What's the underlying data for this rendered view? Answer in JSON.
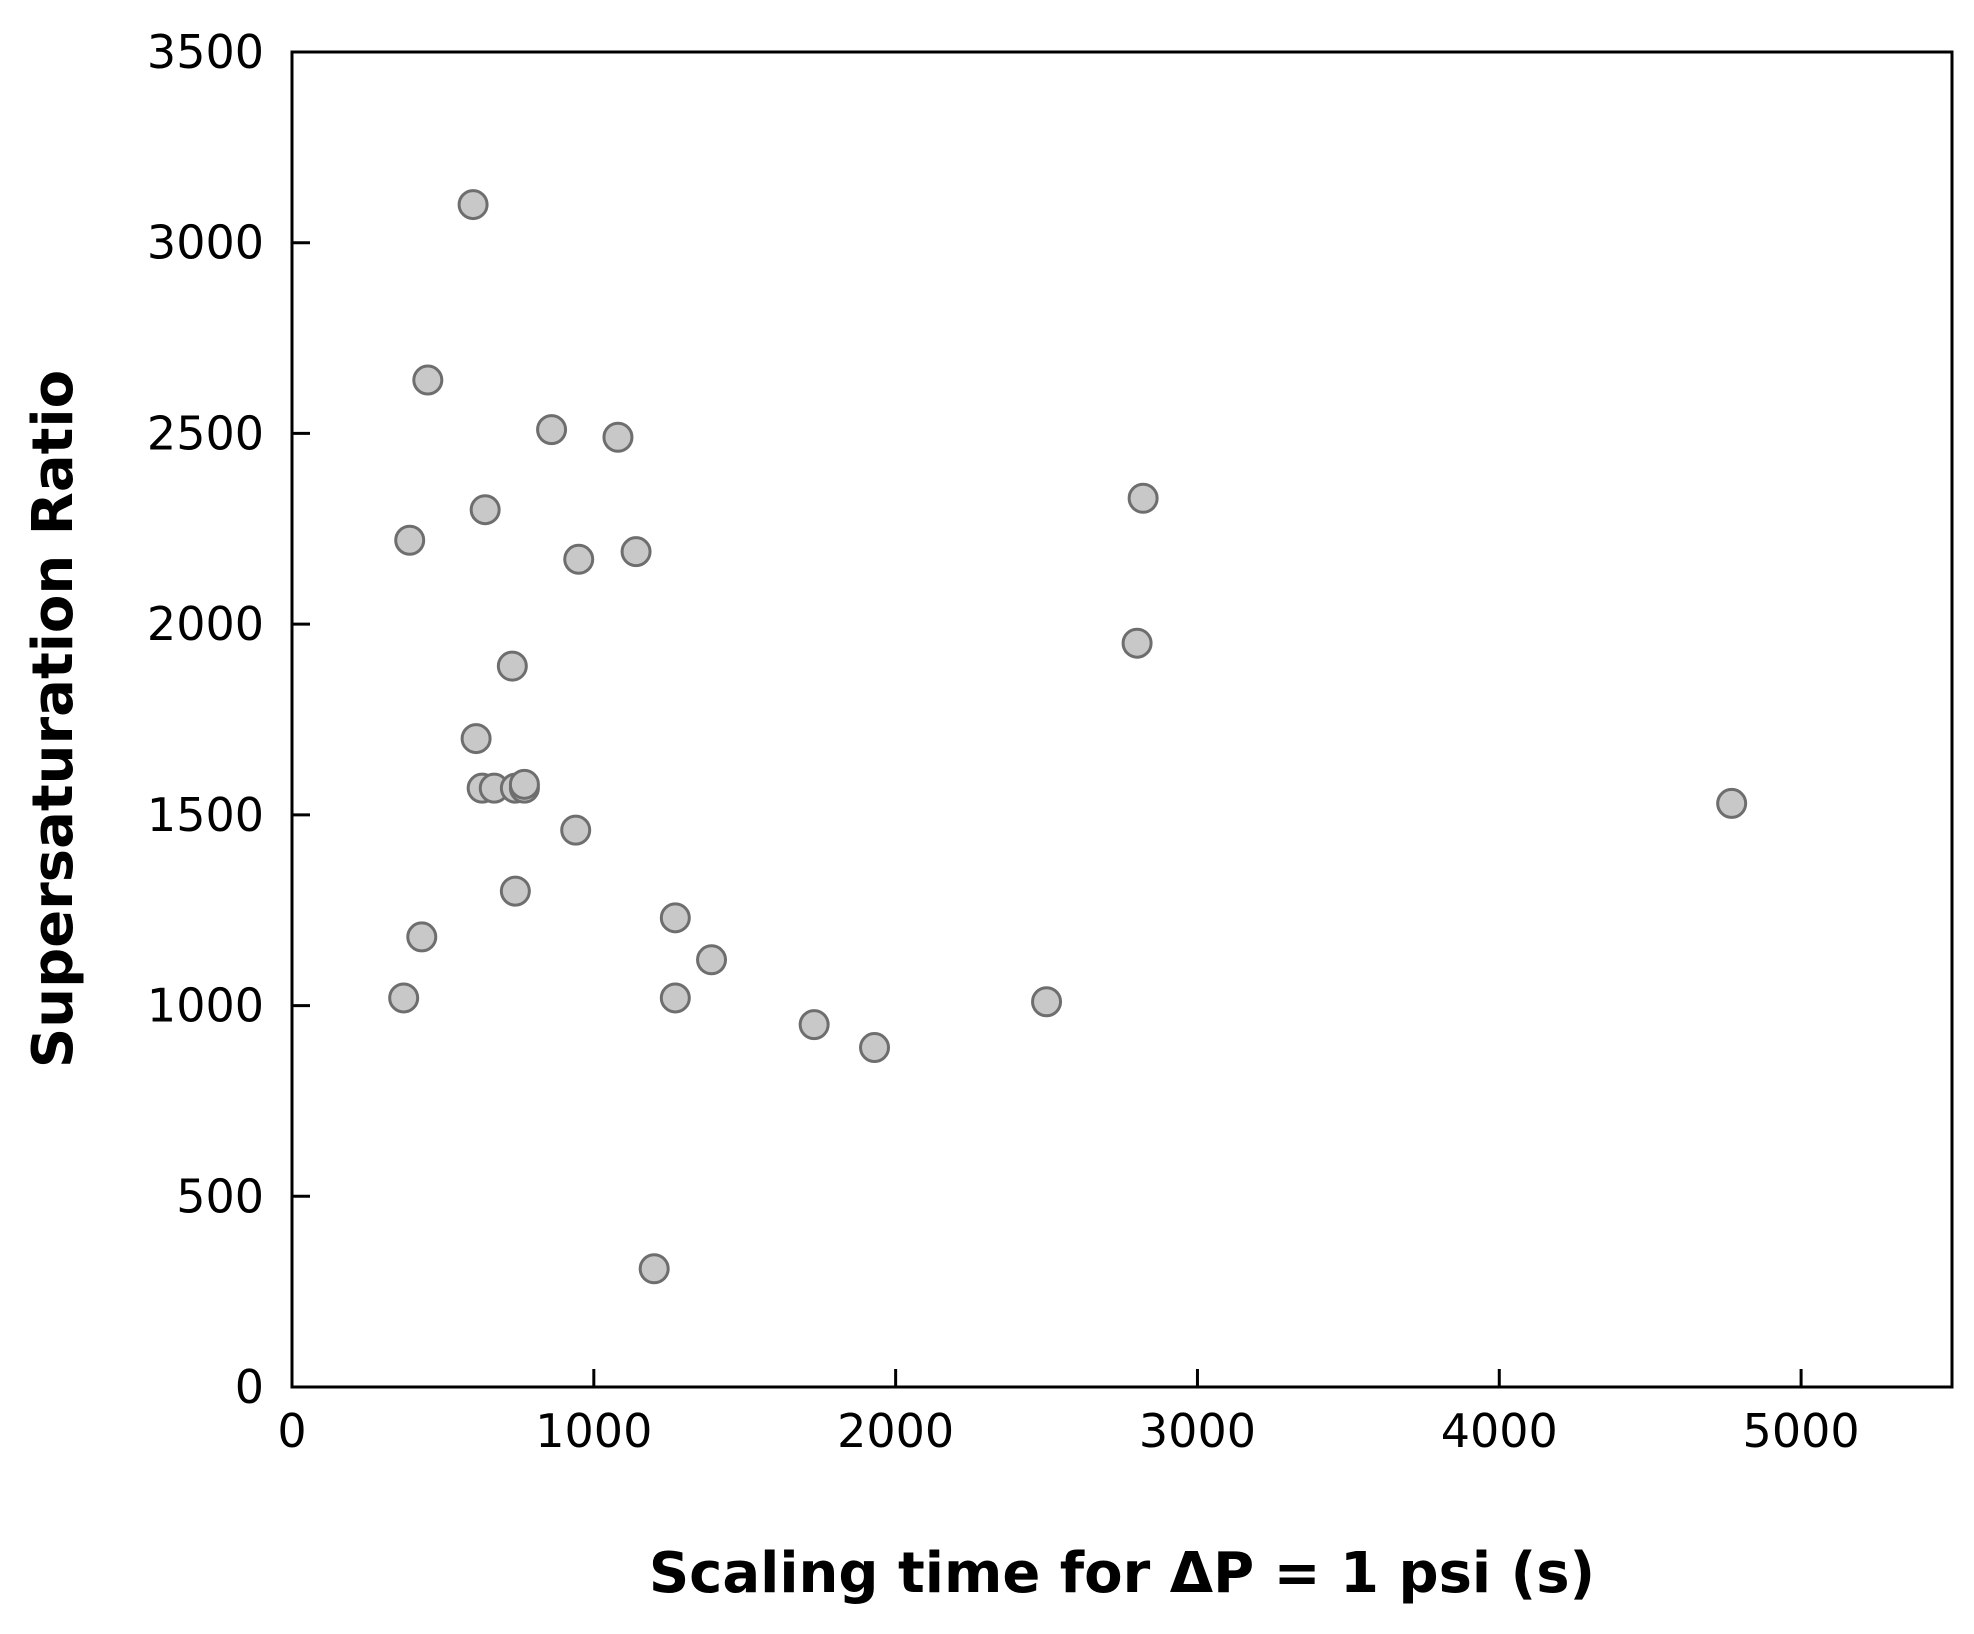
{
  "chart_data": {
    "type": "scatter",
    "xlabel": "Scaling time for ΔP = 1 psi (s)",
    "ylabel": "Supersaturation Ratio",
    "xlim": [
      0,
      5500
    ],
    "ylim": [
      0,
      3500
    ],
    "x_ticks": [
      0,
      1000,
      2000,
      3000,
      4000,
      5000
    ],
    "y_ticks": [
      0,
      500,
      1000,
      1500,
      2000,
      2500,
      3000,
      3500
    ],
    "x_tick_labels": [
      "0",
      "1000",
      "2000",
      "3000",
      "4000",
      "5000"
    ],
    "y_tick_labels": [
      "0",
      "500",
      "1000",
      "1500",
      "2000",
      "2500",
      "3000",
      "3500"
    ],
    "grid": false,
    "legend": "none",
    "marker_fill": "#c8c8c8",
    "marker_stroke": "#6e6e6e",
    "series": [
      {
        "points": [
          {
            "x": 600,
            "y": 3100
          },
          {
            "x": 450,
            "y": 2640
          },
          {
            "x": 860,
            "y": 2510
          },
          {
            "x": 1080,
            "y": 2490
          },
          {
            "x": 640,
            "y": 2300
          },
          {
            "x": 390,
            "y": 2220
          },
          {
            "x": 950,
            "y": 2170
          },
          {
            "x": 1140,
            "y": 2190
          },
          {
            "x": 2820,
            "y": 2330
          },
          {
            "x": 2800,
            "y": 1950
          },
          {
            "x": 730,
            "y": 1890
          },
          {
            "x": 610,
            "y": 1700
          },
          {
            "x": 630,
            "y": 1570
          },
          {
            "x": 670,
            "y": 1570
          },
          {
            "x": 740,
            "y": 1570
          },
          {
            "x": 770,
            "y": 1570
          },
          {
            "x": 770,
            "y": 1580
          },
          {
            "x": 940,
            "y": 1460
          },
          {
            "x": 4770,
            "y": 1530
          },
          {
            "x": 740,
            "y": 1300
          },
          {
            "x": 430,
            "y": 1180
          },
          {
            "x": 1270,
            "y": 1230
          },
          {
            "x": 1390,
            "y": 1120
          },
          {
            "x": 370,
            "y": 1020
          },
          {
            "x": 1270,
            "y": 1020
          },
          {
            "x": 2500,
            "y": 1010
          },
          {
            "x": 1730,
            "y": 950
          },
          {
            "x": 1930,
            "y": 890
          },
          {
            "x": 1200,
            "y": 310
          }
        ]
      }
    ]
  }
}
